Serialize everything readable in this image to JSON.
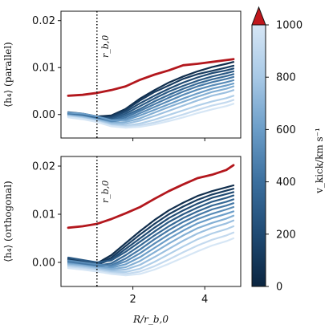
{
  "chart_data": [
    {
      "type": "line",
      "panel": "top",
      "ylabel": "⟨h₄⟩ (parallel)",
      "xlabel": "",
      "xlim": [
        0.0,
        5.0
      ],
      "ylim": [
        -0.005,
        0.022
      ],
      "xticks": [
        2,
        4
      ],
      "xtick_labels": [
        "",
        ""
      ],
      "yticks": [
        0.0,
        0.01,
        0.02
      ],
      "ytick_labels": [
        "0.00",
        "0.01",
        "0.02"
      ],
      "vline": {
        "x": 1.0,
        "label": "r_b,0"
      },
      "x": [
        0.2,
        0.6,
        1.0,
        1.4,
        1.8,
        2.2,
        2.6,
        3.0,
        3.4,
        3.8,
        4.2,
        4.6,
        4.8
      ],
      "highlight_series": {
        "name": "",
        "color": "#b3171d",
        "values": [
          0.004,
          0.0042,
          0.0046,
          0.0052,
          0.006,
          0.0074,
          0.0085,
          0.0094,
          0.0105,
          0.0108,
          0.0112,
          0.0116,
          0.0118
        ]
      },
      "series": [
        {
          "vkick": 50,
          "values": [
            0.0005,
            0.0002,
            -0.0004,
            -0.0002,
            0.0012,
            0.0034,
            0.0052,
            0.0068,
            0.0081,
            0.0092,
            0.0101,
            0.0108,
            0.0112
          ]
        },
        {
          "vkick": 120,
          "values": [
            0.0004,
            0.0,
            -0.0006,
            -0.0004,
            0.001,
            0.003,
            0.0048,
            0.0062,
            0.0076,
            0.0086,
            0.0093,
            0.01,
            0.0104
          ]
        },
        {
          "vkick": 200,
          "values": [
            0.0002,
            -0.0001,
            -0.0008,
            -0.0006,
            0.0006,
            0.0024,
            0.004,
            0.0055,
            0.0068,
            0.0079,
            0.0088,
            0.0094,
            0.0098
          ]
        },
        {
          "vkick": 280,
          "values": [
            0.0003,
            0.0001,
            -0.0005,
            -0.0009,
            0.0002,
            0.0018,
            0.0034,
            0.0049,
            0.0061,
            0.0072,
            0.0081,
            0.0088,
            0.0092
          ]
        },
        {
          "vkick": 360,
          "values": [
            0.0001,
            -0.0002,
            -0.0009,
            -0.0012,
            -0.0002,
            0.0012,
            0.0028,
            0.0042,
            0.0055,
            0.0066,
            0.0075,
            0.0082,
            0.0086
          ]
        },
        {
          "vkick": 440,
          "values": [
            0.0,
            -0.0003,
            -0.001,
            -0.0014,
            -0.0006,
            0.0008,
            0.0022,
            0.0036,
            0.0049,
            0.006,
            0.0069,
            0.0076,
            0.008
          ]
        },
        {
          "vkick": 520,
          "values": [
            -0.0001,
            -0.0004,
            -0.001,
            -0.0016,
            -0.001,
            0.0003,
            0.0016,
            0.0029,
            0.0042,
            0.0053,
            0.0062,
            0.0069,
            0.0073
          ]
        },
        {
          "vkick": 600,
          "values": [
            0.0004,
            0.0002,
            -0.0004,
            -0.0012,
            -0.0012,
            -0.0002,
            0.001,
            0.0022,
            0.0034,
            0.0045,
            0.0055,
            0.0062,
            0.0066
          ]
        },
        {
          "vkick": 680,
          "values": [
            -0.0002,
            -0.0005,
            -0.0011,
            -0.0018,
            -0.0016,
            -0.0008,
            0.0004,
            0.0016,
            0.0027,
            0.0038,
            0.0048,
            0.0055,
            0.006
          ]
        },
        {
          "vkick": 760,
          "values": [
            -0.0003,
            -0.0006,
            -0.0012,
            -0.002,
            -0.002,
            -0.0013,
            -0.0003,
            0.0008,
            0.0019,
            0.003,
            0.004,
            0.0047,
            0.0052
          ]
        },
        {
          "vkick": 840,
          "values": [
            -0.0004,
            -0.0008,
            -0.0014,
            -0.0022,
            -0.0024,
            -0.0019,
            -0.0011,
            -0.0001,
            0.0009,
            0.0019,
            0.0028,
            0.0035,
            0.004
          ]
        },
        {
          "vkick": 920,
          "values": [
            -0.0005,
            -0.0009,
            -0.0015,
            -0.0024,
            -0.0026,
            -0.0023,
            -0.0017,
            -0.0009,
            0.0,
            0.001,
            0.0019,
            0.0026,
            0.0031
          ]
        },
        {
          "vkick": 1000,
          "values": [
            -0.0006,
            -0.001,
            -0.0016,
            -0.0025,
            -0.0028,
            -0.0026,
            -0.0021,
            -0.0014,
            -0.0006,
            0.0003,
            0.0011,
            0.0018,
            0.0023
          ]
        }
      ]
    },
    {
      "type": "line",
      "panel": "bottom",
      "ylabel": "⟨h₄⟩ (orthogonal)",
      "xlabel": "R/r_b,0",
      "xlim": [
        0.0,
        5.0
      ],
      "ylim": [
        -0.005,
        0.022
      ],
      "xticks": [
        2,
        4
      ],
      "xtick_labels": [
        "2",
        "4"
      ],
      "yticks": [
        0.0,
        0.01,
        0.02
      ],
      "ytick_labels": [
        "0.00",
        "0.01",
        "0.02"
      ],
      "vline": {
        "x": 1.0,
        "label": "r_b,0"
      },
      "x": [
        0.2,
        0.6,
        1.0,
        1.4,
        1.8,
        2.2,
        2.6,
        3.0,
        3.4,
        3.8,
        4.2,
        4.6,
        4.8
      ],
      "highlight_series": {
        "name": "",
        "color": "#b3171d",
        "values": [
          0.0072,
          0.0075,
          0.008,
          0.009,
          0.0102,
          0.0115,
          0.0132,
          0.0148,
          0.0162,
          0.0175,
          0.0182,
          0.0192,
          0.0202
        ]
      },
      "series": [
        {
          "vkick": 50,
          "values": [
            0.0008,
            0.0004,
            -0.0002,
            0.0015,
            0.004,
            0.0065,
            0.0088,
            0.0108,
            0.0124,
            0.0138,
            0.0148,
            0.0156,
            0.016
          ]
        },
        {
          "vkick": 120,
          "values": [
            0.0006,
            0.0002,
            -0.0004,
            0.001,
            0.0034,
            0.0058,
            0.008,
            0.01,
            0.0116,
            0.013,
            0.0141,
            0.0149,
            0.0153
          ]
        },
        {
          "vkick": 200,
          "values": [
            0.0004,
            0.0,
            -0.0005,
            0.0006,
            0.0028,
            0.005,
            0.0072,
            0.0092,
            0.0108,
            0.0122,
            0.0134,
            0.0142,
            0.0146
          ]
        },
        {
          "vkick": 280,
          "values": [
            0.001,
            0.0005,
            0.0,
            0.0004,
            0.0022,
            0.0043,
            0.0064,
            0.0084,
            0.01,
            0.0114,
            0.0126,
            0.0134,
            0.0139
          ]
        },
        {
          "vkick": 360,
          "values": [
            0.0002,
            -0.0002,
            -0.0007,
            -0.0002,
            0.0015,
            0.0035,
            0.0056,
            0.0075,
            0.0092,
            0.0106,
            0.0118,
            0.0126,
            0.0131
          ]
        },
        {
          "vkick": 440,
          "values": [
            0.0,
            -0.0004,
            -0.0008,
            -0.0006,
            0.0008,
            0.0027,
            0.0048,
            0.0067,
            0.0084,
            0.0098,
            0.011,
            0.0118,
            0.0123
          ]
        },
        {
          "vkick": 520,
          "values": [
            0.0004,
            0.0,
            -0.0004,
            -0.0008,
            0.0002,
            0.0019,
            0.0039,
            0.0058,
            0.0075,
            0.009,
            0.0101,
            0.011,
            0.0115
          ]
        },
        {
          "vkick": 600,
          "values": [
            -0.0002,
            -0.0006,
            -0.001,
            -0.0011,
            -0.0004,
            0.0011,
            0.003,
            0.0049,
            0.0066,
            0.0081,
            0.0092,
            0.0101,
            0.0106
          ]
        },
        {
          "vkick": 680,
          "values": [
            -0.0004,
            -0.0007,
            -0.0011,
            -0.0014,
            -0.001,
            0.0003,
            0.0021,
            0.0039,
            0.0056,
            0.0071,
            0.0082,
            0.0091,
            0.0097
          ]
        },
        {
          "vkick": 760,
          "values": [
            -0.0006,
            -0.0009,
            -0.0013,
            -0.0017,
            -0.0015,
            -0.0005,
            0.0011,
            0.0028,
            0.0045,
            0.006,
            0.0072,
            0.0081,
            0.0087
          ]
        },
        {
          "vkick": 840,
          "values": [
            -0.0008,
            -0.0011,
            -0.0015,
            -0.002,
            -0.002,
            -0.0013,
            0.0001,
            0.0017,
            0.0033,
            0.0048,
            0.006,
            0.0069,
            0.0075
          ]
        },
        {
          "vkick": 920,
          "values": [
            -0.001,
            -0.0013,
            -0.0017,
            -0.0022,
            -0.0024,
            -0.0019,
            -0.0008,
            0.0006,
            0.0021,
            0.0035,
            0.0047,
            0.0056,
            0.0062
          ]
        },
        {
          "vkick": 1000,
          "values": [
            -0.0012,
            -0.0015,
            -0.0019,
            -0.0024,
            -0.0027,
            -0.0024,
            -0.0015,
            -0.0003,
            0.001,
            0.0023,
            0.0035,
            0.0044,
            0.005
          ]
        }
      ]
    }
  ],
  "colorbar": {
    "label": "v_kick/km s⁻¹",
    "range": [
      0,
      1000
    ],
    "ticks": [
      0,
      200,
      400,
      600,
      800,
      1000
    ],
    "tick_labels": [
      "0",
      "200",
      "400",
      "600",
      "800",
      "1000"
    ],
    "colormap": "Blues_r",
    "cmap_stops": [
      "#0b2540",
      "#1f4a73",
      "#3b6f9e",
      "#6b9dc8",
      "#a8c9e6",
      "#d6e6f5"
    ],
    "extend_color": "#c0171c"
  }
}
